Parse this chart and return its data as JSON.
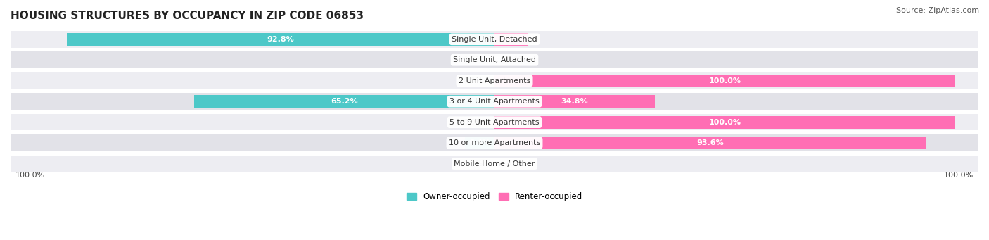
{
  "title": "HOUSING STRUCTURES BY OCCUPANCY IN ZIP CODE 06853",
  "source": "Source: ZipAtlas.com",
  "categories": [
    "Single Unit, Detached",
    "Single Unit, Attached",
    "2 Unit Apartments",
    "3 or 4 Unit Apartments",
    "5 to 9 Unit Apartments",
    "10 or more Apartments",
    "Mobile Home / Other"
  ],
  "owner_pct": [
    92.8,
    0.0,
    0.0,
    65.2,
    0.0,
    6.4,
    0.0
  ],
  "renter_pct": [
    7.2,
    0.0,
    100.0,
    34.8,
    100.0,
    93.6,
    0.0
  ],
  "owner_color": "#4DC8C8",
  "renter_color": "#FF6EB4",
  "row_bg_colors": [
    "#EDEDF2",
    "#E2E2E8"
  ],
  "title_fontsize": 11,
  "source_fontsize": 8,
  "bar_label_fontsize": 8,
  "category_fontsize": 8,
  "legend_fontsize": 8.5,
  "axis_label_fontsize": 8,
  "left_label": "100.0%",
  "right_label": "100.0%"
}
